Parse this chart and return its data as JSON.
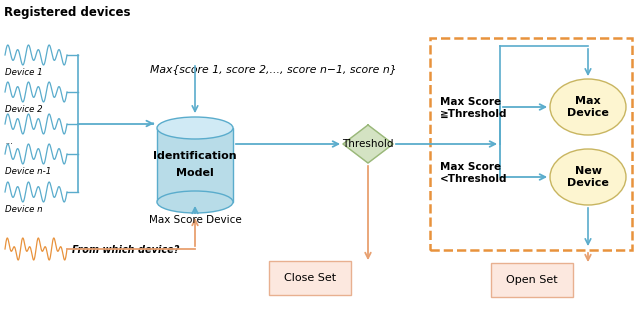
{
  "title": "Registered devices",
  "device_labels": [
    "Device 1",
    "Device 2",
    "...",
    "Device n-1",
    "Device n"
  ],
  "query_label": "From which device?",
  "max_score_formula": "Max{score 1, score 2,..., score n−1, score n}",
  "model_label1": "Identification",
  "model_label2": "Model",
  "threshold_label": "Threshold",
  "max_score_device_label": "Max Score Device",
  "cond1_line1": "Max Score",
  "cond1_line2": "≧Threshold",
  "cond2_line1": "Max Score",
  "cond2_line2": "<Threshold",
  "max_device_label": "Max\nDevice",
  "new_device_label": "New\nDevice",
  "close_set_label": "Close Set",
  "open_set_label": "Open Set",
  "blue_color": "#5aaccc",
  "light_blue": "#b8dce8",
  "blue_top": "#d0eaf5",
  "orange_color": "#e8923c",
  "light_orange": "#f0b080",
  "arrow_orange": "#e8a070",
  "green_fill": "#d4e3c3",
  "green_edge": "#9ab87a",
  "cream_fill": "#fdf5d0",
  "cream_edge": "#c8b560",
  "pink_fill": "#fce8df",
  "pink_edge": "#e8b090",
  "bg_color": "#ffffff"
}
